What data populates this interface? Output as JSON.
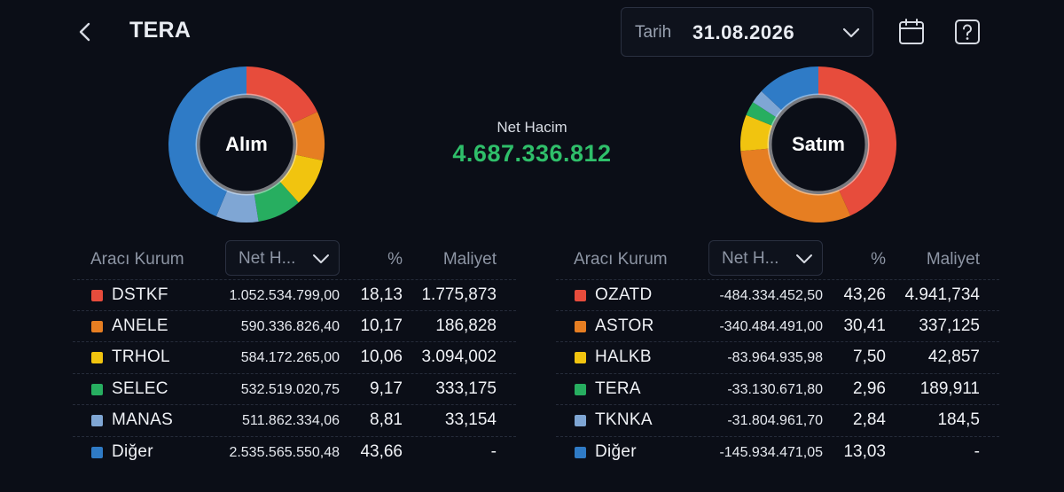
{
  "header": {
    "title": "TERA",
    "date_label": "Tarih",
    "date_value": "31.08.2026"
  },
  "icons": {
    "back": "chevron-left-icon",
    "dropdown": "chevron-down-icon",
    "calendar": "calendar-icon",
    "help": "help-icon"
  },
  "colors": {
    "background": "#0b0e17",
    "positive": "#2fbf6a",
    "series": [
      "#e74c3c",
      "#e67e22",
      "#f1c40f",
      "#27ae60",
      "#7fa6d4",
      "#2f7bc6"
    ]
  },
  "summary": {
    "net_label": "Net Hacim",
    "net_value": "4.687.336.812"
  },
  "buy": {
    "chart_label": "Alım",
    "columns": {
      "broker": "Aracı Kurum",
      "volume_select": "Net H...",
      "pct": "%",
      "cost": "Maliyet"
    },
    "rows": [
      {
        "name": "DSTKF",
        "volume": "1.052.534.799,00",
        "pct": "18,13",
        "cost": "1.775,873"
      },
      {
        "name": "ANELE",
        "volume": "590.336.826,40",
        "pct": "10,17",
        "cost": "186,828"
      },
      {
        "name": "TRHOL",
        "volume": "584.172.265,00",
        "pct": "10,06",
        "cost": "3.094,002"
      },
      {
        "name": "SELEC",
        "volume": "532.519.020,75",
        "pct": "9,17",
        "cost": "333,175"
      },
      {
        "name": "MANAS",
        "volume": "511.862.334,06",
        "pct": "8,81",
        "cost": "33,154"
      },
      {
        "name": "Diğer",
        "volume": "2.535.565.550,48",
        "pct": "43,66",
        "cost": "-"
      }
    ]
  },
  "sell": {
    "chart_label": "Satım",
    "columns": {
      "broker": "Aracı Kurum",
      "volume_select": "Net H...",
      "pct": "%",
      "cost": "Maliyet"
    },
    "rows": [
      {
        "name": "OZATD",
        "volume": "-484.334.452,50",
        "pct": "43,26",
        "cost": "4.941,734"
      },
      {
        "name": "ASTOR",
        "volume": "-340.484.491,00",
        "pct": "30,41",
        "cost": "337,125"
      },
      {
        "name": "HALKB",
        "volume": "-83.964.935,98",
        "pct": "7,50",
        "cost": "42,857"
      },
      {
        "name": "TERA",
        "volume": "-33.130.671,80",
        "pct": "2,96",
        "cost": "189,911"
      },
      {
        "name": "TKNKA",
        "volume": "-31.804.961,70",
        "pct": "2,84",
        "cost": "184,5"
      },
      {
        "name": "Diğer",
        "volume": "-145.934.471,05",
        "pct": "13,03",
        "cost": "-"
      }
    ]
  },
  "chart_data": [
    {
      "type": "pie",
      "title": "Alım",
      "categories": [
        "DSTKF",
        "ANELE",
        "TRHOL",
        "SELEC",
        "MANAS",
        "Diğer"
      ],
      "values": [
        18.13,
        10.17,
        10.06,
        9.17,
        8.81,
        43.66
      ]
    },
    {
      "type": "pie",
      "title": "Satım",
      "categories": [
        "OZATD",
        "ASTOR",
        "HALKB",
        "TERA",
        "TKNKA",
        "Diğer"
      ],
      "values": [
        43.26,
        30.41,
        7.5,
        2.96,
        2.84,
        13.03
      ]
    }
  ]
}
